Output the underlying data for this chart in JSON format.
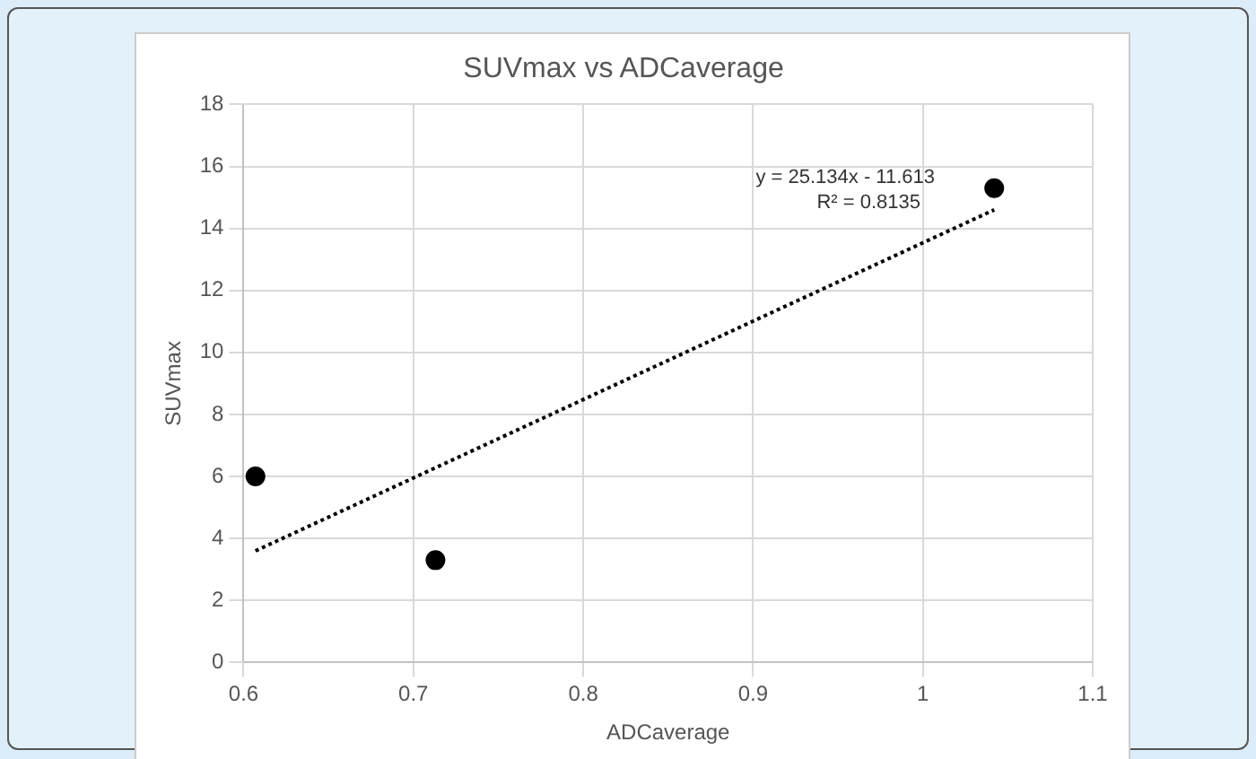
{
  "chart_data": {
    "type": "scatter",
    "title": "SUVmax vs ADCaverage",
    "xlabel": "ADCaverage",
    "ylabel": "SUVmax",
    "xlim": [
      0.6,
      1.1
    ],
    "xticks": [
      0.6,
      0.7,
      0.8,
      0.9,
      1,
      1.1
    ],
    "ylim": [
      0,
      18
    ],
    "yticks": [
      0,
      2,
      4,
      6,
      8,
      10,
      12,
      14,
      16,
      18
    ],
    "grid": true,
    "legend": false,
    "marker": "circle",
    "series": [
      {
        "color": "#000000",
        "x": [
          0.607,
          0.713,
          1.042
        ],
        "values": [
          6.0,
          3.3,
          15.3
        ]
      },
      {
        "type": "line",
        "color": "#000000",
        "line_style": "dotted",
        "marker": "none",
        "x": [
          0.607,
          1.042
        ],
        "values": [
          3.6,
          14.6
        ]
      }
    ],
    "annotations": [
      "y = 25.134x - 11.613",
      "R² = 0.8135"
    ]
  }
}
